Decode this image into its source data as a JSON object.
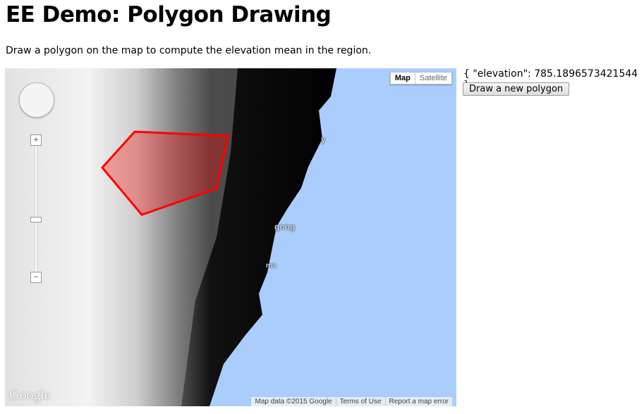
{
  "title": "EE Demo: Polygon Drawing",
  "description": "Draw a polygon on the map to compute the elevation mean in the region.",
  "map": {
    "type_buttons": [
      {
        "label": "Map",
        "selected": true
      },
      {
        "label": "Satellite",
        "selected": false
      }
    ],
    "labels": [
      "y",
      "gong",
      "ma"
    ],
    "logo": "Google",
    "attribution": [
      "Map data ©2015 Google",
      "Terms of Use",
      "Report a map error"
    ],
    "zoom_in": "+",
    "zoom_out": "−",
    "colors": {
      "ocean": "#abcdfe",
      "polygon_stroke": "#ff0000",
      "polygon_fill": "#ff0000"
    }
  },
  "result": "{ \"elevation\": 785.1896573421544 }",
  "draw_button": "Draw a new polygon"
}
